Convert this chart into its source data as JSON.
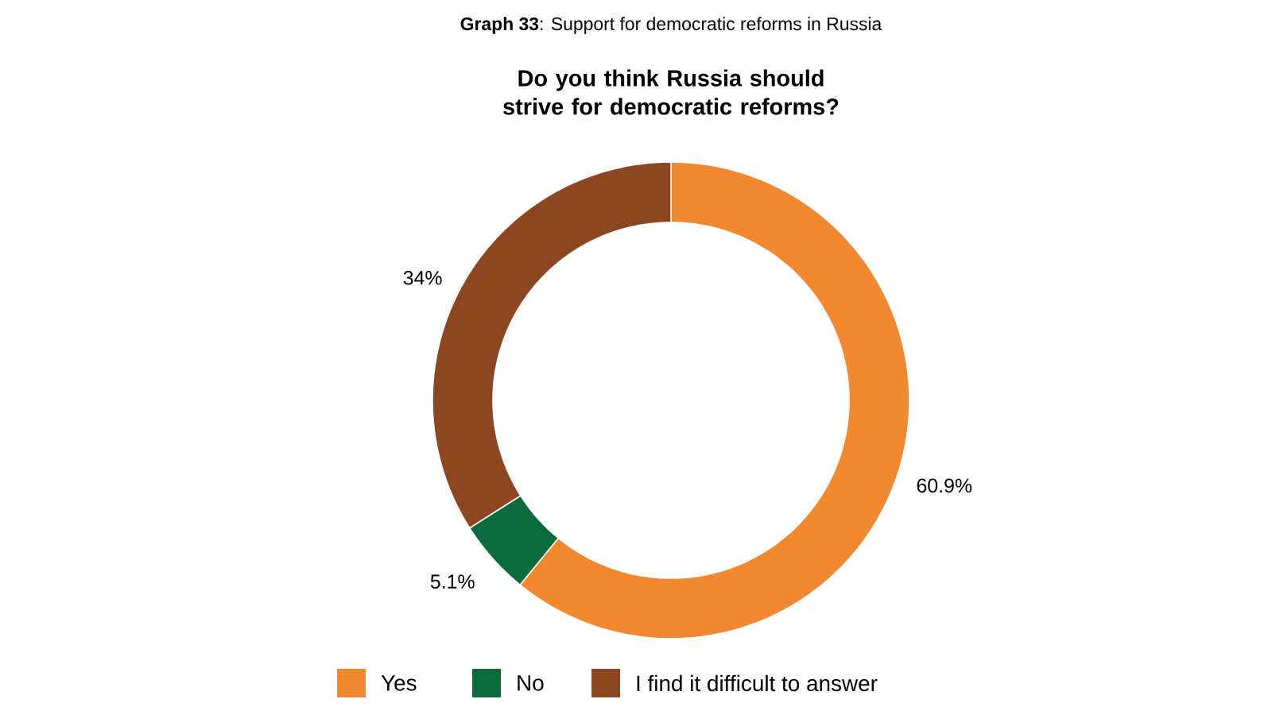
{
  "chart_data": {
    "type": "donut",
    "title": "**Graph 33**: Support for democratic reforms in Russia",
    "subtitle": "Do you think Russia should strive for democratic reforms?",
    "categories": [
      "Yes",
      "No",
      "I find it difficult to answer"
    ],
    "values": [
      60.9,
      5.1,
      34
    ],
    "value_labels": [
      "60.9%",
      "5.1%",
      "34%"
    ],
    "colors": [
      "#f2882f",
      "#0b6b3b",
      "#8c4720"
    ],
    "legend": "bottom"
  }
}
